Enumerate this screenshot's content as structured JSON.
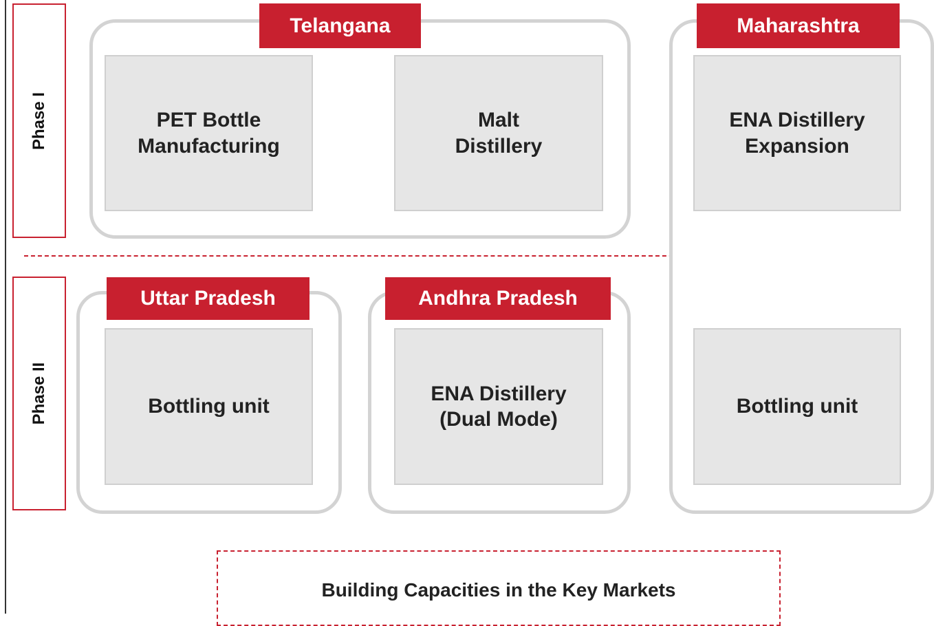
{
  "phases": [
    "Phase I",
    "Phase II"
  ],
  "regions": [
    {
      "name": "Telangana",
      "units": [
        [
          "PET Bottle",
          "Manufacturing"
        ],
        [
          "Malt",
          "Distillery"
        ]
      ]
    },
    {
      "name": "Maharashtra",
      "units": [
        [
          "ENA Distillery",
          "Expansion"
        ],
        [
          "Bottling unit"
        ]
      ]
    },
    {
      "name": "Uttar Pradesh",
      "units": [
        [
          "Bottling unit"
        ]
      ]
    },
    {
      "name": "Andhra Pradesh",
      "units": [
        [
          "ENA Distillery",
          "(Dual Mode)"
        ]
      ]
    }
  ],
  "caption": "Building Capacities in the Key Markets"
}
